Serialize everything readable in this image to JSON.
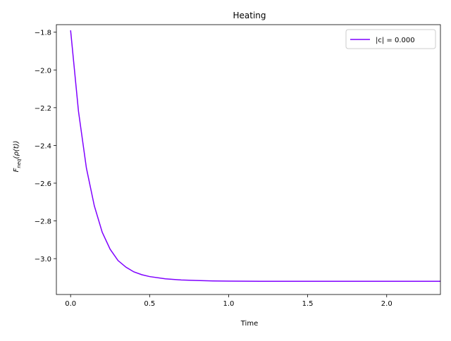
{
  "chart_data": {
    "type": "line",
    "title": "Heating",
    "xlabel": "Time",
    "ylabel": {
      "base": "F",
      "subscript": "neq",
      "suffix": "(ρ(t))"
    },
    "xlim": [
      -0.09,
      2.34
    ],
    "ylim": [
      -3.19,
      -1.76
    ],
    "xticks": [
      0.0,
      0.5,
      1.0,
      1.5,
      2.0
    ],
    "xtick_labels": [
      "0.0",
      "0.5",
      "1.0",
      "1.5",
      "2.0"
    ],
    "yticks": [
      -1.8,
      -2.0,
      -2.2,
      -2.4,
      -2.6,
      -2.8,
      -3.0
    ],
    "ytick_labels": [
      "−1.8",
      "−2.0",
      "−2.2",
      "−2.4",
      "−2.6",
      "−2.8",
      "−3.0"
    ],
    "grid": false,
    "legend_position": "top-right",
    "series": [
      {
        "name": "|c| = 0.000",
        "color": "#7f00ff",
        "x": [
          0.0,
          0.05,
          0.1,
          0.15,
          0.2,
          0.25,
          0.3,
          0.35,
          0.4,
          0.45,
          0.5,
          0.6,
          0.7,
          0.8,
          0.9,
          1.0,
          1.2,
          1.4,
          1.6,
          1.8,
          2.0,
          2.2,
          2.34
        ],
        "y": [
          -1.79,
          -2.22,
          -2.52,
          -2.72,
          -2.86,
          -2.95,
          -3.01,
          -3.045,
          -3.07,
          -3.085,
          -3.095,
          -3.107,
          -3.113,
          -3.116,
          -3.118,
          -3.119,
          -3.12,
          -3.12,
          -3.12,
          -3.12,
          -3.12,
          -3.12,
          -3.12
        ]
      }
    ]
  }
}
